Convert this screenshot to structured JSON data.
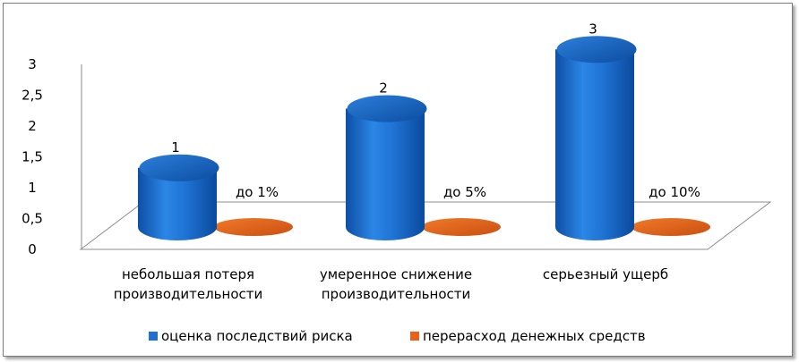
{
  "chart_data": {
    "type": "bar",
    "style": "3d-cylinder",
    "categories": [
      [
        "небольшая потеря",
        "производительности"
      ],
      [
        "умеренное снижение",
        "производительности"
      ],
      [
        "серьезный ущерб"
      ]
    ],
    "series": [
      {
        "name": "оценка последствий риска",
        "values": [
          1,
          2,
          3
        ],
        "labels": [
          "1",
          "2",
          "3"
        ],
        "color": "#1f6fd0"
      },
      {
        "name": "перерасход денежных средств",
        "values": [
          0,
          0,
          0
        ],
        "labels": [
          "до 1%",
          "до 5%",
          "до 10%"
        ],
        "color": "#e8631a"
      }
    ],
    "yticks": [
      "0",
      "0,5",
      "1",
      "1,5",
      "2",
      "2,5",
      "3"
    ],
    "ylim": [
      0,
      3
    ],
    "legend": "bottom",
    "grid": false
  }
}
